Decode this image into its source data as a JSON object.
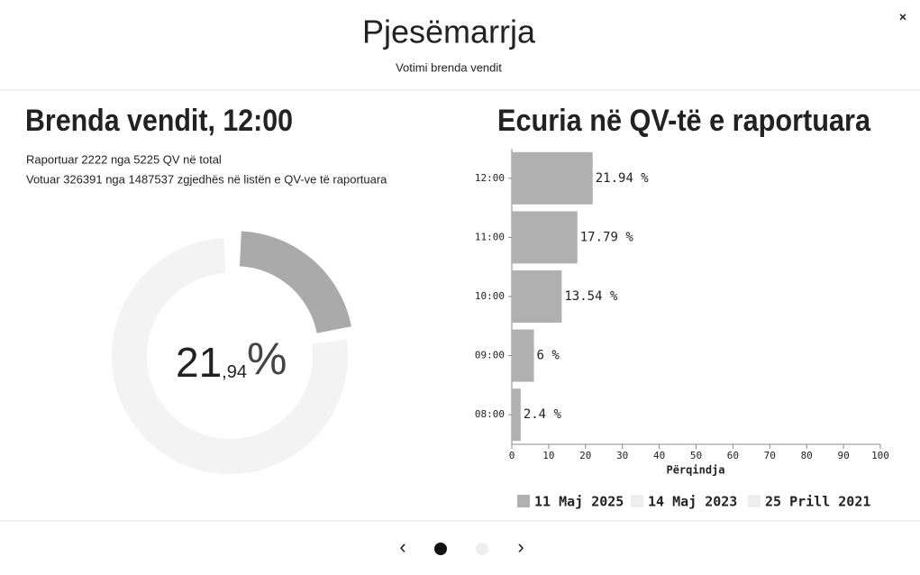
{
  "header": {
    "title": "Pjesëmarrja",
    "subtitle": "Votimi brenda vendit",
    "close": "×"
  },
  "left": {
    "heading": "Brenda vendit, 12:00",
    "lines": [
      "Raportuar 2222 nga 5225 QV në total",
      "Votuar 326391 nga 1487537 zgjedhës në listën e QV-ve të raportuara"
    ],
    "donut": {
      "value": 21.94,
      "label_int": "21",
      "label_dec": ",94",
      "label_unit": "%",
      "color": "#aaaaaa",
      "track_color": "#f3f3f3"
    }
  },
  "chart_data": {
    "type": "barh",
    "title": "Ecuria në QV-të e raportuara",
    "xlabel": "Përqindja",
    "categories": [
      "12:00",
      "11:00",
      "10:00",
      "09:00",
      "08:00"
    ],
    "series": [
      {
        "name": "11 Maj 2025",
        "color": "#b0b0b0",
        "visible": true,
        "values": [
          21.94,
          17.79,
          13.54,
          6,
          2.4
        ],
        "value_labels": [
          "21.94 %",
          "17.79 %",
          "13.54 %",
          "6 %",
          "2.4 %"
        ]
      },
      {
        "name": "14 Maj 2023",
        "color": "#eeeeee",
        "visible": false
      },
      {
        "name": "25 Prill 2021",
        "color": "#eeeeee",
        "visible": false
      }
    ],
    "xlim": [
      0,
      100
    ],
    "xticks": [
      0,
      10,
      20,
      30,
      40,
      50,
      60,
      70,
      80,
      90,
      100
    ]
  },
  "pager": {
    "prev": "‹",
    "next": "›"
  }
}
